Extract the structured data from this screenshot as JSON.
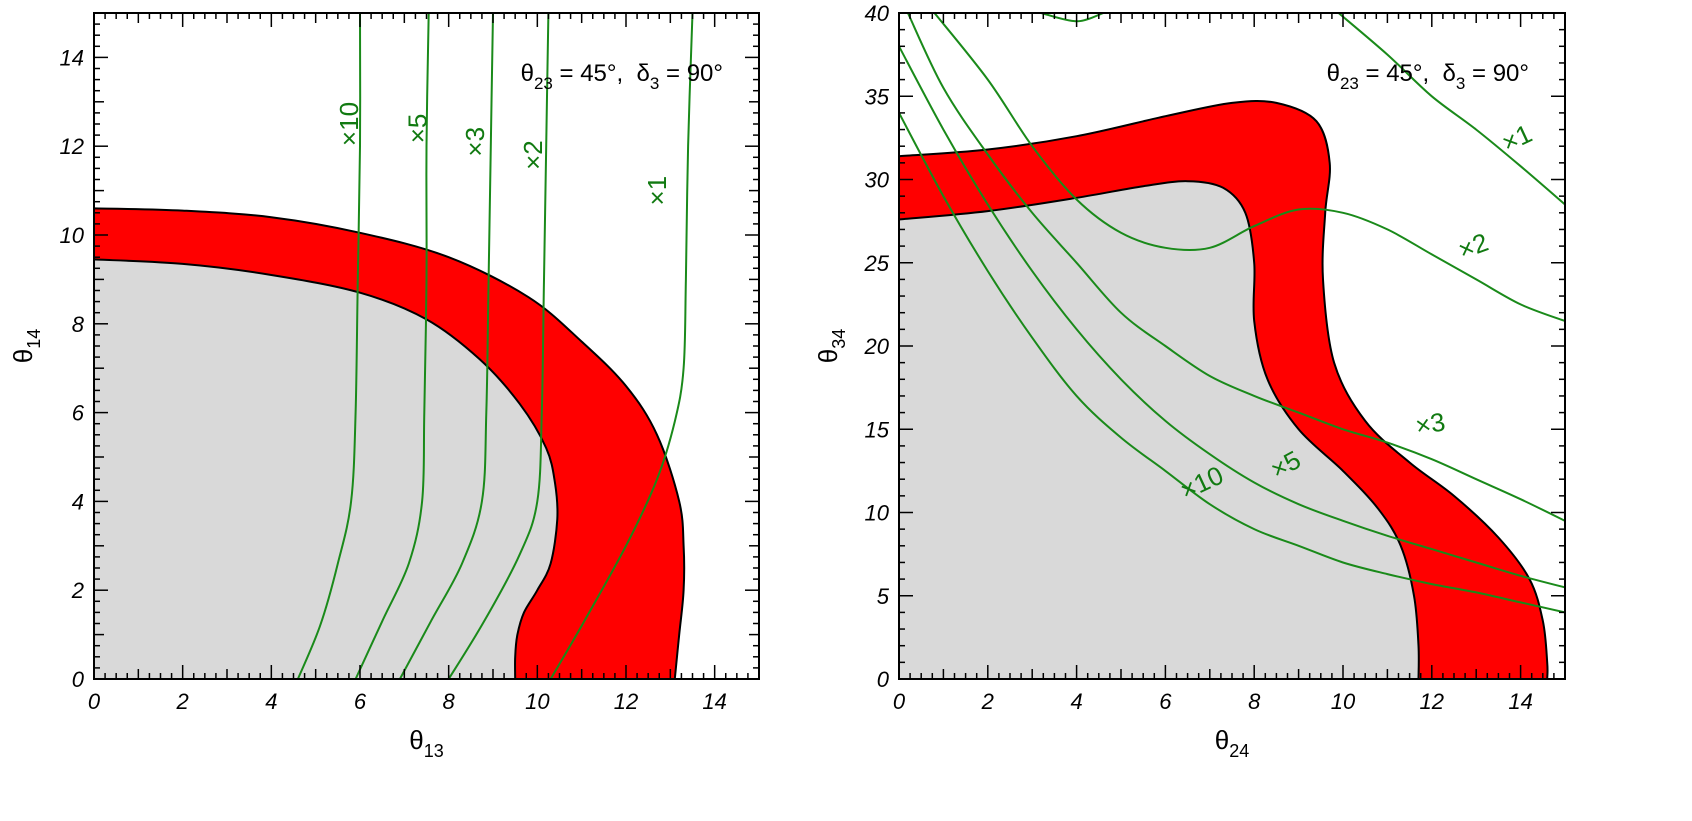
{
  "colors": {
    "excluded_region": "#d9d9d9",
    "band": "#ff0000",
    "contour": "#1a8a1a",
    "frame": "#000000"
  },
  "chart_data": [
    {
      "type": "area",
      "xlabel": "θ13",
      "ylabel": "θ14",
      "xlim": [
        0,
        15
      ],
      "ylim": [
        0,
        15
      ],
      "xticks": [
        0,
        2,
        4,
        6,
        8,
        10,
        12,
        14
      ],
      "yticks": [
        0,
        2,
        4,
        6,
        8,
        10,
        12,
        14
      ],
      "annotation": {
        "theta_text": "θ",
        "theta_sub": "23",
        "eq1": " = 45°,  ",
        "delta_text": "δ",
        "delta_sub": "3",
        "eq2": " = 90°"
      },
      "band_outer": [
        [
          0,
          10.6
        ],
        [
          2,
          10.55
        ],
        [
          4,
          10.4
        ],
        [
          6,
          10.05
        ],
        [
          8,
          9.5
        ],
        [
          9.8,
          8.6
        ],
        [
          11,
          7.6
        ],
        [
          12,
          6.6
        ],
        [
          12.7,
          5.5
        ],
        [
          13.2,
          4.0
        ],
        [
          13.3,
          3.0
        ],
        [
          13.3,
          2.0
        ],
        [
          13.2,
          1.0
        ],
        [
          13.1,
          0
        ]
      ],
      "band_inner": [
        [
          0,
          9.45
        ],
        [
          2,
          9.35
        ],
        [
          4,
          9.1
        ],
        [
          6,
          8.7
        ],
        [
          7.5,
          8.1
        ],
        [
          8.7,
          7.2
        ],
        [
          9.6,
          6.2
        ],
        [
          10.2,
          5.2
        ],
        [
          10.4,
          4.4
        ],
        [
          10.45,
          3.6
        ],
        [
          10.3,
          2.6
        ],
        [
          10.0,
          2.0
        ],
        [
          9.7,
          1.5
        ],
        [
          9.55,
          1.0
        ],
        [
          9.5,
          0.5
        ],
        [
          9.5,
          0
        ]
      ],
      "series": [
        {
          "name": "×1",
          "points": [
            [
              10.3,
              0
            ],
            [
              11,
              1.2
            ],
            [
              12,
              3.0
            ],
            [
              12.7,
              4.5
            ],
            [
              13.1,
              5.8
            ],
            [
              13.3,
              7.0
            ],
            [
              13.35,
              9.0
            ],
            [
              13.4,
              12.0
            ],
            [
              13.5,
              15.0
            ]
          ]
        },
        {
          "name": "×2",
          "points": [
            [
              8,
              0
            ],
            [
              8.8,
              1.3
            ],
            [
              9.6,
              2.8
            ],
            [
              10,
              4.0
            ],
            [
              10.1,
              6.0
            ],
            [
              10.15,
              9.0
            ],
            [
              10.2,
              12.0
            ],
            [
              10.25,
              15.0
            ]
          ]
        },
        {
          "name": "×3",
          "points": [
            [
              6.9,
              0
            ],
            [
              7.6,
              1.3
            ],
            [
              8.3,
              2.6
            ],
            [
              8.75,
              4.0
            ],
            [
              8.85,
              6.0
            ],
            [
              8.9,
              9.0
            ],
            [
              8.95,
              12.0
            ],
            [
              9.0,
              15.0
            ]
          ]
        },
        {
          "name": "×5",
          "points": [
            [
              5.9,
              0
            ],
            [
              6.5,
              1.3
            ],
            [
              7.1,
              2.6
            ],
            [
              7.4,
              4.0
            ],
            [
              7.45,
              6.0
            ],
            [
              7.5,
              9.0
            ],
            [
              7.5,
              12.0
            ],
            [
              7.55,
              15.0
            ]
          ]
        },
        {
          "name": "×10",
          "points": [
            [
              4.6,
              0
            ],
            [
              5.1,
              1.2
            ],
            [
              5.5,
              2.6
            ],
            [
              5.8,
              4.0
            ],
            [
              5.9,
              6.0
            ],
            [
              5.95,
              9.0
            ],
            [
              6.0,
              12.0
            ],
            [
              6.0,
              15.0
            ]
          ]
        }
      ],
      "curve_labels": [
        {
          "text": "×1",
          "x": 12.9,
          "y": 11.0
        },
        {
          "text": "×2",
          "x": 10.1,
          "y": 11.8
        },
        {
          "text": "×3",
          "x": 8.8,
          "y": 12.1
        },
        {
          "text": "×5",
          "x": 7.5,
          "y": 12.4
        },
        {
          "text": "×10",
          "x": 5.95,
          "y": 12.5
        }
      ]
    },
    {
      "type": "area",
      "xlabel": "θ24",
      "ylabel": "θ34",
      "xlim": [
        0,
        15
      ],
      "ylim": [
        0,
        40
      ],
      "xticks": [
        0,
        2,
        4,
        6,
        8,
        10,
        12,
        14
      ],
      "yticks": [
        0,
        5,
        10,
        15,
        20,
        25,
        30,
        35,
        40
      ],
      "annotation": {
        "theta_text": "θ",
        "theta_sub": "23",
        "eq1": " = 45°,  ",
        "delta_text": "δ",
        "delta_sub": "3",
        "eq2": " = 90°"
      },
      "band_outer": [
        [
          0,
          31.4
        ],
        [
          2,
          31.8
        ],
        [
          4,
          32.6
        ],
        [
          6,
          33.8
        ],
        [
          7.5,
          34.6
        ],
        [
          8.5,
          34.6
        ],
        [
          9.4,
          33.5
        ],
        [
          9.7,
          31.0
        ],
        [
          9.6,
          28.0
        ],
        [
          9.55,
          24.0
        ],
        [
          9.8,
          19.0
        ],
        [
          10.5,
          15.5
        ],
        [
          11.5,
          13.0
        ],
        [
          12.5,
          11.0
        ],
        [
          13.5,
          8.5
        ],
        [
          14.2,
          6.0
        ],
        [
          14.5,
          3.5
        ],
        [
          14.6,
          1.0
        ],
        [
          14.6,
          0
        ]
      ],
      "band_inner": [
        [
          0,
          27.6
        ],
        [
          2,
          28.1
        ],
        [
          4,
          28.9
        ],
        [
          5.5,
          29.6
        ],
        [
          6.5,
          29.9
        ],
        [
          7.3,
          29.5
        ],
        [
          7.8,
          28.0
        ],
        [
          8.0,
          25.0
        ],
        [
          8.0,
          21.5
        ],
        [
          8.3,
          18.0
        ],
        [
          9.0,
          15.0
        ],
        [
          10.0,
          12.5
        ],
        [
          10.8,
          10.2
        ],
        [
          11.3,
          8.0
        ],
        [
          11.6,
          5.0
        ],
        [
          11.7,
          2.0
        ],
        [
          11.7,
          0
        ]
      ],
      "series": [
        {
          "name": "×1",
          "points": [
            [
              3.2,
              40
            ],
            [
              4.0,
              39.5
            ],
            [
              4.6,
              40.0
            ]
          ]
        },
        {
          "name": "×1b",
          "points": [
            [
              9.9,
              40
            ],
            [
              11.0,
              37.5
            ],
            [
              12.0,
              35.0
            ],
            [
              13.0,
              33.0
            ],
            [
              14.0,
              30.8
            ],
            [
              15.0,
              28.5
            ]
          ]
        },
        {
          "name": "×2",
          "points": [
            [
              0.8,
              40
            ],
            [
              2.0,
              36.0
            ],
            [
              3.0,
              32.0
            ],
            [
              4.0,
              28.8
            ],
            [
              5.0,
              26.8
            ],
            [
              6.0,
              25.9
            ],
            [
              7.0,
              25.9
            ],
            [
              8.0,
              27.2
            ],
            [
              9.0,
              28.2
            ],
            [
              10.0,
              28.0
            ],
            [
              11.0,
              27.0
            ],
            [
              12.0,
              25.5
            ],
            [
              13.0,
              24.0
            ],
            [
              14.0,
              22.5
            ],
            [
              15.0,
              21.5
            ]
          ]
        },
        {
          "name": "×3",
          "points": [
            [
              0.2,
              40
            ],
            [
              1.0,
              35.5
            ],
            [
              2.0,
              31.5
            ],
            [
              3.0,
              28.0
            ],
            [
              4.0,
              25.0
            ],
            [
              5.0,
              22.0
            ],
            [
              6.0,
              20.0
            ],
            [
              7.0,
              18.2
            ],
            [
              8.0,
              17.0
            ],
            [
              9.0,
              16.0
            ],
            [
              10.0,
              15.0
            ],
            [
              11.0,
              14.2
            ],
            [
              12.0,
              13.2
            ],
            [
              13.0,
              12.0
            ],
            [
              14.0,
              10.8
            ],
            [
              15.0,
              9.5
            ]
          ]
        },
        {
          "name": "×5",
          "points": [
            [
              0,
              38.0
            ],
            [
              1.0,
              33.0
            ],
            [
              2.0,
              28.5
            ],
            [
              3.0,
              24.5
            ],
            [
              4.0,
              21.0
            ],
            [
              5.0,
              18.0
            ],
            [
              6.0,
              15.5
            ],
            [
              7.0,
              13.5
            ],
            [
              8.0,
              11.8
            ],
            [
              9.0,
              10.5
            ],
            [
              10.0,
              9.5
            ],
            [
              11.0,
              8.6
            ],
            [
              12.0,
              7.8
            ],
            [
              13.0,
              7.0
            ],
            [
              14.0,
              6.2
            ],
            [
              15.0,
              5.5
            ]
          ]
        },
        {
          "name": "×10",
          "points": [
            [
              0,
              34.0
            ],
            [
              1.0,
              29.0
            ],
            [
              2.0,
              24.5
            ],
            [
              3.0,
              20.5
            ],
            [
              4.0,
              17.0
            ],
            [
              5.0,
              14.5
            ],
            [
              6.0,
              12.5
            ],
            [
              7.0,
              10.5
            ],
            [
              8.0,
              9.0
            ],
            [
              9.0,
              8.0
            ],
            [
              10.0,
              7.0
            ],
            [
              11.0,
              6.3
            ],
            [
              12.0,
              5.7
            ],
            [
              13.0,
              5.2
            ],
            [
              14.0,
              4.6
            ],
            [
              15.0,
              4.0
            ]
          ]
        }
      ],
      "curve_labels": [
        {
          "text": "×1",
          "x": 14.0,
          "y": 32.0,
          "rot": 25
        },
        {
          "text": "×2",
          "x": 13.0,
          "y": 25.5,
          "rot": 20
        },
        {
          "text": "×3",
          "x": 12.0,
          "y": 14.8,
          "rot": 10
        },
        {
          "text": "×5",
          "x": 8.8,
          "y": 12.4,
          "rot": 28
        },
        {
          "text": "×10",
          "x": 6.9,
          "y": 11.3,
          "rot": 25
        }
      ]
    }
  ]
}
